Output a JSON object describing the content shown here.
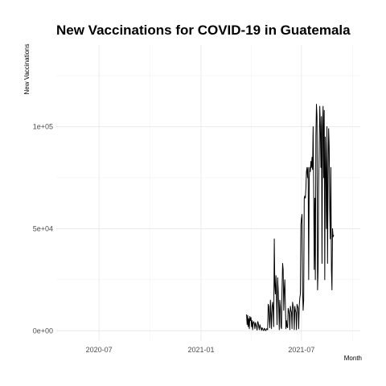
{
  "chart_data": {
    "type": "line",
    "title": "New Vaccinations for COVID-19 in Guatemala",
    "xlabel": "Month",
    "ylabel": "New Vaccinations",
    "x_tick_labels": [
      "2020-07",
      "2021-01",
      "2021-07"
    ],
    "x_tick_dates": [
      "2020-07-01",
      "2021-01-01",
      "2021-07-01"
    ],
    "xlim": [
      "2020-04-15",
      "2021-10-15"
    ],
    "y_tick_labels": [
      "0e+00",
      "5e+04",
      "1e+05"
    ],
    "y_tick_values": [
      0,
      50000,
      100000
    ],
    "ylim": [
      -5000,
      140000
    ],
    "grid": true,
    "series": [
      {
        "color": "#000000",
        "x": [
          "2021-03-24",
          "2021-03-25",
          "2021-03-26",
          "2021-03-27",
          "2021-03-28",
          "2021-03-29",
          "2021-03-30",
          "2021-03-31",
          "2021-04-01",
          "2021-04-02",
          "2021-04-03",
          "2021-04-04",
          "2021-04-05",
          "2021-04-06",
          "2021-04-07",
          "2021-04-08",
          "2021-04-09",
          "2021-04-10",
          "2021-04-11",
          "2021-04-12",
          "2021-04-13",
          "2021-04-14",
          "2021-04-15",
          "2021-04-16",
          "2021-04-17",
          "2021-04-18",
          "2021-04-19",
          "2021-04-20",
          "2021-04-21",
          "2021-04-22",
          "2021-04-23",
          "2021-04-24",
          "2021-04-25",
          "2021-04-26",
          "2021-04-27",
          "2021-04-28",
          "2021-04-29",
          "2021-04-30",
          "2021-05-01",
          "2021-05-02",
          "2021-05-03",
          "2021-05-04",
          "2021-05-05",
          "2021-05-06",
          "2021-05-07",
          "2021-05-08",
          "2021-05-09",
          "2021-05-10",
          "2021-05-11",
          "2021-05-12",
          "2021-05-13",
          "2021-05-14",
          "2021-05-15",
          "2021-05-16",
          "2021-05-17",
          "2021-05-18",
          "2021-05-19",
          "2021-05-20",
          "2021-05-21",
          "2021-05-22",
          "2021-05-23",
          "2021-05-24",
          "2021-05-25",
          "2021-05-26",
          "2021-05-27",
          "2021-05-28",
          "2021-05-29",
          "2021-05-30",
          "2021-05-31",
          "2021-06-01",
          "2021-06-02",
          "2021-06-03",
          "2021-06-04",
          "2021-06-05",
          "2021-06-06",
          "2021-06-07",
          "2021-06-08",
          "2021-06-09",
          "2021-06-10",
          "2021-06-11",
          "2021-06-12",
          "2021-06-13",
          "2021-06-14",
          "2021-06-15",
          "2021-06-16",
          "2021-06-17",
          "2021-06-18",
          "2021-06-19",
          "2021-06-20",
          "2021-06-21",
          "2021-06-22",
          "2021-06-23",
          "2021-06-24",
          "2021-06-25",
          "2021-06-26",
          "2021-06-27",
          "2021-06-28",
          "2021-06-29",
          "2021-06-30",
          "2021-07-01",
          "2021-07-02",
          "2021-07-03",
          "2021-07-04",
          "2021-07-05",
          "2021-07-06",
          "2021-07-07",
          "2021-07-08",
          "2021-07-09",
          "2021-07-10",
          "2021-07-11",
          "2021-07-12",
          "2021-07-13",
          "2021-07-14",
          "2021-07-15",
          "2021-07-16",
          "2021-07-17",
          "2021-07-18",
          "2021-07-19",
          "2021-07-20",
          "2021-07-21",
          "2021-07-22",
          "2021-07-23",
          "2021-07-24",
          "2021-07-25",
          "2021-07-26",
          "2021-07-27",
          "2021-07-28",
          "2021-07-29",
          "2021-07-30",
          "2021-07-31",
          "2021-08-01",
          "2021-08-02",
          "2021-08-03",
          "2021-08-04",
          "2021-08-05",
          "2021-08-06",
          "2021-08-07",
          "2021-08-08",
          "2021-08-09",
          "2021-08-10",
          "2021-08-11",
          "2021-08-12",
          "2021-08-13",
          "2021-08-14",
          "2021-08-15",
          "2021-08-16",
          "2021-08-17",
          "2021-08-18",
          "2021-08-19",
          "2021-08-20",
          "2021-08-21",
          "2021-08-22",
          "2021-08-23",
          "2021-08-24",
          "2021-08-25",
          "2021-08-26",
          "2021-08-27",
          "2021-08-28"
        ],
        "y": [
          8000,
          3000,
          7500,
          2000,
          6000,
          1000,
          7000,
          5000,
          6500,
          2000,
          5000,
          500,
          4000,
          4500,
          3500,
          1000,
          4000,
          3000,
          2000,
          300,
          4500,
          4000,
          2000,
          500,
          3000,
          2000,
          1000,
          200,
          1500,
          1000,
          300,
          100,
          1200,
          900,
          200,
          100,
          1000,
          800,
          500,
          13000,
          12000,
          5000,
          1500,
          15000,
          8000,
          1000,
          12000,
          14000,
          10000,
          2000,
          45000,
          22000,
          18000,
          27000,
          15000,
          3000,
          26000,
          20000,
          12000,
          500,
          15000,
          12000,
          2000,
          1000,
          20000,
          33000,
          30000,
          10000,
          20000,
          25000,
          12000,
          1000,
          5000,
          2000,
          1500,
          11000,
          10000,
          8000,
          500,
          12000,
          10000,
          9000,
          1000,
          14000,
          12000,
          10000,
          500,
          12000,
          10000,
          9000,
          500,
          13000,
          12000,
          11000,
          1000,
          12000,
          16000,
          18000,
          52000,
          55000,
          57000,
          20000,
          10000,
          15000,
          65000,
          66000,
          65000,
          70000,
          78000,
          80000,
          75000,
          80000,
          25000,
          75000,
          80000,
          78000,
          83000,
          80000,
          85000,
          79000,
          100000,
          70000,
          30000,
          65000,
          25000,
          95000,
          111000,
          105000,
          20000,
          30000,
          70000,
          90000,
          110000,
          100000,
          80000,
          105000,
          33000,
          100000,
          110000,
          75000,
          108000,
          25000,
          95000,
          80000,
          50000,
          100000,
          33000,
          75000,
          99000,
          90000,
          60000,
          45000,
          80000,
          30000,
          20000,
          50000,
          46000,
          47000
        ]
      }
    ]
  }
}
